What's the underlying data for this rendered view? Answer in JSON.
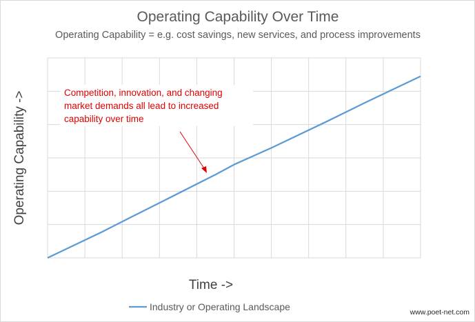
{
  "chart_data": {
    "type": "line",
    "title": "Operating Capability Over Time",
    "subtitle": "Operating Capability = e.g. cost savings, new services, and process improvements",
    "xlabel": "Time ->",
    "ylabel": "Operating Capability ->",
    "x_ticks": 10,
    "y_ticks": 6,
    "xlim": [
      0,
      10
    ],
    "ylim": [
      0,
      6
    ],
    "grid": true,
    "legend": "bottom-center",
    "series": [
      {
        "name": "Industry or Operating Landscape",
        "color": "#5b9bd5",
        "x": [
          0,
          1.5,
          2.2,
          3.0,
          4.5,
          5.0,
          6.0,
          7.5,
          8.5,
          10.0
        ],
        "y": [
          0,
          0.8,
          1.2,
          1.65,
          2.5,
          2.8,
          3.3,
          4.1,
          4.65,
          5.45
        ]
      }
    ],
    "annotation": {
      "lines": [
        "Competition, innovation, and changing",
        "market demands all lead to increased",
        "capability over time"
      ],
      "color": "#e00000"
    },
    "source_note": "www.poet-net.com"
  }
}
